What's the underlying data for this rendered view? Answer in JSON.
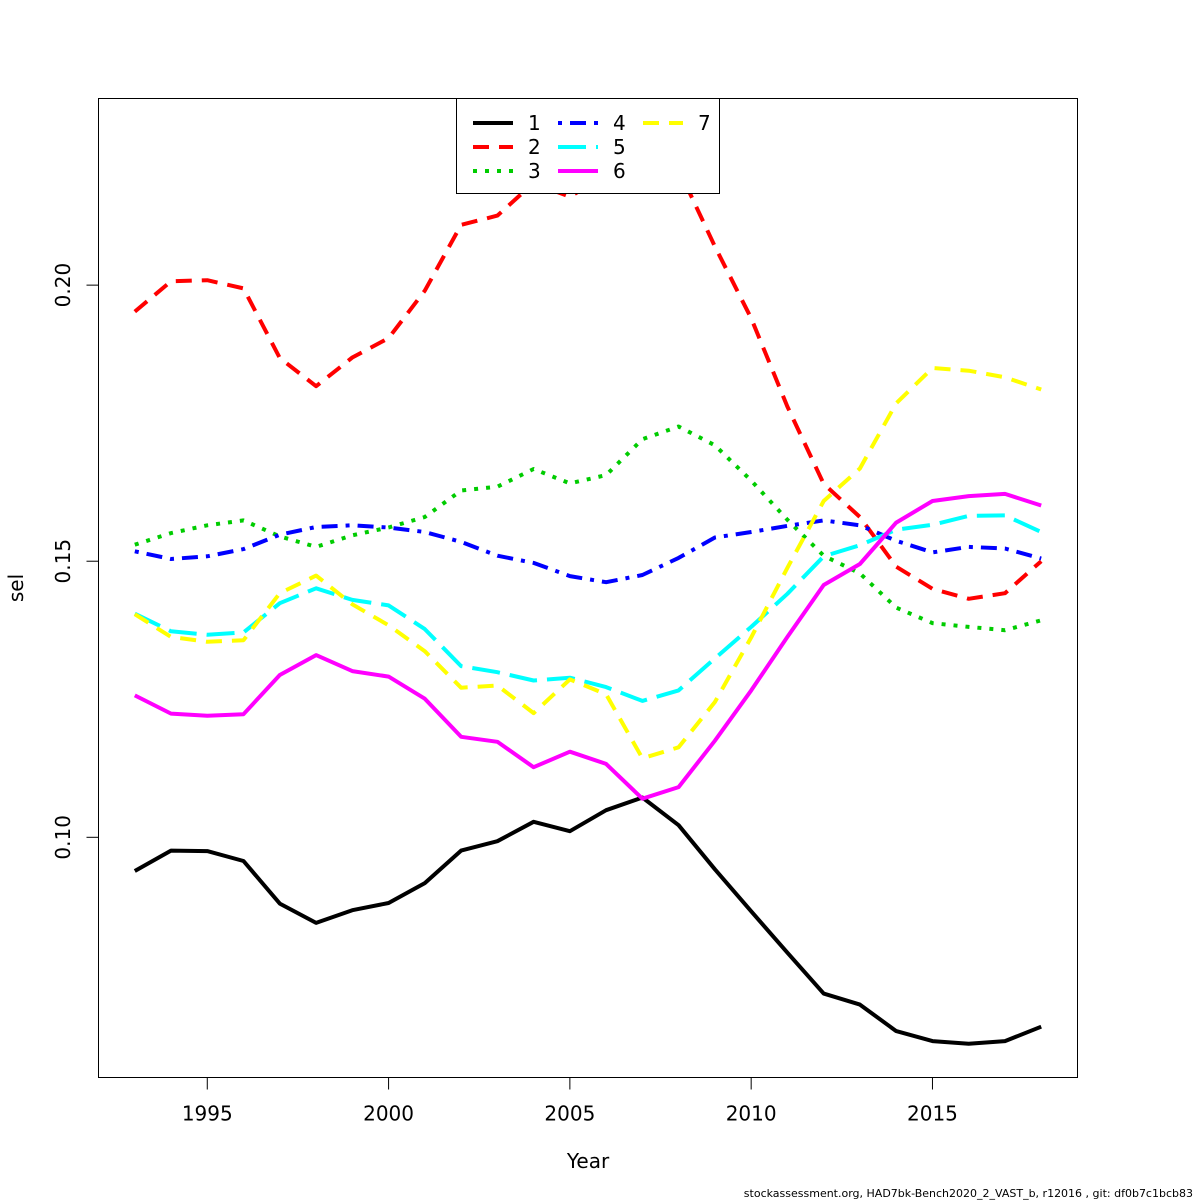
{
  "chart_data": {
    "type": "line",
    "title": "",
    "xlabel": "Year",
    "ylabel": "sel",
    "xlim": [
      1992,
      2019
    ],
    "ylim": [
      0.0565,
      0.2338
    ],
    "xticks": [
      1995,
      2000,
      2005,
      2010,
      2015
    ],
    "xtick_labels": [
      "1995",
      "2000",
      "2005",
      "2010",
      "2015"
    ],
    "yticks": [
      0.1,
      0.15,
      0.2
    ],
    "ytick_labels": [
      "0.10",
      "0.15",
      "0.20"
    ],
    "grid": false,
    "legend_position": "top-center",
    "x": [
      1993,
      1994,
      1995,
      1996,
      1997,
      1998,
      1999,
      2000,
      2001,
      2002,
      2003,
      2004,
      2005,
      2006,
      2007,
      2008,
      2009,
      2010,
      2011,
      2012,
      2013,
      2014,
      2015,
      2016,
      2017,
      2018
    ],
    "series": [
      {
        "name": "1",
        "color": "#000000",
        "dash": "solid",
        "values": [
          0.0939,
          0.0976,
          0.0975,
          0.0957,
          0.088,
          0.0845,
          0.0868,
          0.0881,
          0.0917,
          0.0976,
          0.0993,
          0.1028,
          0.1011,
          0.1049,
          0.1072,
          0.1022,
          0.0942,
          0.0866,
          0.0791,
          0.0717,
          0.0697,
          0.0649,
          0.0631,
          0.0626,
          0.0631,
          0.0657
        ]
      },
      {
        "name": "2",
        "color": "#ff0000",
        "dash": "dashed",
        "values": [
          0.1952,
          0.2007,
          0.2009,
          0.1994,
          0.1868,
          0.1817,
          0.1869,
          0.1904,
          0.199,
          0.2109,
          0.2126,
          0.2185,
          0.216,
          0.22,
          0.223,
          0.221,
          0.207,
          0.194,
          0.178,
          0.164,
          0.158,
          0.149,
          0.145,
          0.1432,
          0.1442,
          0.15
        ]
      },
      {
        "name": "3",
        "color": "#00cc00",
        "dash": "dotted",
        "values": [
          0.153,
          0.1551,
          0.1565,
          0.1574,
          0.1545,
          0.1526,
          0.1547,
          0.1561,
          0.158,
          0.1628,
          0.1635,
          0.1667,
          0.1641,
          0.1656,
          0.1721,
          0.1744,
          0.171,
          0.1646,
          0.1575,
          0.151,
          0.1478,
          0.1416,
          0.1388,
          0.1381,
          0.1375,
          0.1393
        ]
      },
      {
        "name": "4",
        "color": "#0000ff",
        "dash": "dotdash",
        "values": [
          0.1518,
          0.1504,
          0.1509,
          0.1522,
          0.1548,
          0.1562,
          0.1565,
          0.1561,
          0.1553,
          0.1535,
          0.151,
          0.1497,
          0.1473,
          0.1462,
          0.1475,
          0.1506,
          0.1543,
          0.1553,
          0.1564,
          0.1574,
          0.1565,
          0.1537,
          0.1516,
          0.1526,
          0.1523,
          0.1505
        ]
      },
      {
        "name": "5",
        "color": "#00ffff",
        "dash": "longdash",
        "values": [
          0.1405,
          0.1373,
          0.1367,
          0.1371,
          0.1424,
          0.1451,
          0.143,
          0.142,
          0.1377,
          0.131,
          0.1299,
          0.1284,
          0.1289,
          0.1272,
          0.1247,
          0.1266,
          0.1324,
          0.1381,
          0.1441,
          0.1509,
          0.1529,
          0.1557,
          0.1566,
          0.1582,
          0.1583,
          0.1553
        ]
      },
      {
        "name": "6",
        "color": "#ff00ff",
        "dash": "solid",
        "values": [
          0.1257,
          0.1224,
          0.122,
          0.1223,
          0.1294,
          0.133,
          0.1301,
          0.1291,
          0.1251,
          0.1182,
          0.1173,
          0.1127,
          0.1155,
          0.1133,
          0.107,
          0.1091,
          0.1175,
          0.1266,
          0.1363,
          0.1457,
          0.1495,
          0.157,
          0.1609,
          0.1618,
          0.1622,
          0.1601
        ]
      },
      {
        "name": "7",
        "color": "#ffff00",
        "dash": "dashed",
        "values": [
          0.1404,
          0.1363,
          0.1354,
          0.1357,
          0.1442,
          0.1474,
          0.1422,
          0.1384,
          0.1337,
          0.1271,
          0.1275,
          0.1225,
          0.1286,
          0.1259,
          0.1143,
          0.1163,
          0.1245,
          0.1362,
          0.1488,
          0.1609,
          0.1668,
          0.1786,
          0.185,
          0.1845,
          0.1833,
          0.1811
        ]
      }
    ]
  },
  "footer_text": "stockassessment.org, HAD7bk-Bench2020_2_VAST_b, r12016 , git: df0b7c1bcb83"
}
